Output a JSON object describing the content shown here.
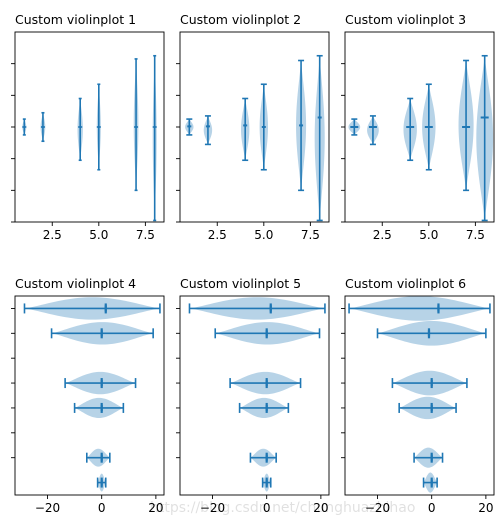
{
  "watermark": "https://blog.csdn.net/chunghuazhihao",
  "colors": {
    "body": "#1f77b4",
    "body_alpha": 0.32,
    "line": "#1f77b4"
  },
  "chart_data": [
    {
      "type": "violin",
      "orientation": "vertical",
      "title": "Custom violinplot 1",
      "positions": [
        1,
        2,
        4,
        5,
        7,
        8
      ],
      "xlim": [
        0.5,
        8.5
      ],
      "ylim": [
        -3,
        3
      ],
      "xticks": [
        2.5,
        5.0,
        7.5
      ],
      "xtick_labels": [
        "2.5",
        "5.0",
        "7.5"
      ],
      "yticks": [
        -3,
        -2,
        -1,
        0,
        1,
        2
      ],
      "ytick_labels": [
        "",
        "",
        "",
        "",
        "",
        ""
      ],
      "showmeans": false,
      "showmedians": false,
      "showextrema": true,
      "violins": [
        {
          "min": -0.25,
          "max": 0.25,
          "median": 0,
          "mean": 0,
          "width": 0.12
        },
        {
          "min": -0.45,
          "max": 0.45,
          "median": 0,
          "mean": 0,
          "width": 0.14
        },
        {
          "min": -1.05,
          "max": 0.9,
          "median": 0,
          "mean": 0,
          "width": 0.16
        },
        {
          "min": -1.35,
          "max": 1.35,
          "median": 0,
          "mean": 0,
          "width": 0.12
        },
        {
          "min": -2.0,
          "max": 2.15,
          "median": 0,
          "mean": 0,
          "width": 0.14
        },
        {
          "min": -2.95,
          "max": 2.25,
          "median": 0,
          "mean": 0,
          "width": 0.12
        }
      ]
    },
    {
      "type": "violin",
      "orientation": "vertical",
      "title": "Custom violinplot 2",
      "positions": [
        1,
        2,
        4,
        5,
        7,
        8
      ],
      "xlim": [
        0.5,
        8.5
      ],
      "ylim": [
        -3,
        3
      ],
      "xticks": [
        2.5,
        5.0,
        7.5
      ],
      "xtick_labels": [
        "2.5",
        "5.0",
        "7.5"
      ],
      "yticks": [
        -3,
        -2,
        -1,
        0,
        1,
        2
      ],
      "ytick_labels": [
        "",
        "",
        "",
        "",
        "",
        ""
      ],
      "showmeans": true,
      "showmedians": false,
      "showextrema": true,
      "violins": [
        {
          "min": -0.25,
          "max": 0.25,
          "median": 0,
          "mean": 0.02,
          "width": 0.25
        },
        {
          "min": -0.55,
          "max": 0.35,
          "median": 0,
          "mean": 0.02,
          "width": 0.25
        },
        {
          "min": -1.05,
          "max": 0.9,
          "median": 0,
          "mean": 0.05,
          "width": 0.25
        },
        {
          "min": -1.35,
          "max": 1.35,
          "median": 0,
          "mean": 0.0,
          "width": 0.25
        },
        {
          "min": -2.0,
          "max": 2.1,
          "median": 0,
          "mean": 0.05,
          "width": 0.3
        },
        {
          "min": -2.95,
          "max": 2.25,
          "median": 0,
          "mean": 0.3,
          "width": 0.3
        }
      ]
    },
    {
      "type": "violin",
      "orientation": "vertical",
      "title": "Custom violinplot 3",
      "positions": [
        1,
        2,
        4,
        5,
        7,
        8
      ],
      "xlim": [
        0.5,
        8.5
      ],
      "ylim": [
        -3,
        3
      ],
      "xticks": [
        2.5,
        5.0,
        7.5
      ],
      "xtick_labels": [
        "2.5",
        "5.0",
        "7.5"
      ],
      "yticks": [
        -3,
        -2,
        -1,
        0,
        1,
        2
      ],
      "ytick_labels": [
        "",
        "",
        "",
        "",
        "",
        ""
      ],
      "showmeans": false,
      "showmedians": true,
      "showextrema": true,
      "violins": [
        {
          "min": -0.25,
          "max": 0.25,
          "median": 0,
          "mean": 0,
          "width": 0.35
        },
        {
          "min": -0.55,
          "max": 0.35,
          "median": 0,
          "mean": 0,
          "width": 0.35
        },
        {
          "min": -1.05,
          "max": 0.9,
          "median": 0,
          "mean": 0,
          "width": 0.4
        },
        {
          "min": -1.35,
          "max": 1.35,
          "median": 0,
          "mean": 0,
          "width": 0.4
        },
        {
          "min": -2.0,
          "max": 2.1,
          "median": 0,
          "mean": 0,
          "width": 0.45
        },
        {
          "min": -2.95,
          "max": 2.25,
          "median": 0.3,
          "mean": 0.3,
          "width": 0.5
        }
      ]
    },
    {
      "type": "violin",
      "orientation": "horizontal",
      "title": "Custom violinplot 4",
      "positions": [
        1,
        2,
        4,
        5,
        7,
        8
      ],
      "xlim": [
        -32,
        23
      ],
      "ylim": [
        0.5,
        8.5
      ],
      "xticks": [
        -20,
        0,
        20
      ],
      "xtick_labels": [
        "−20",
        "0",
        "20"
      ],
      "yticks": [
        2,
        3,
        4,
        5,
        6,
        7,
        8
      ],
      "ytick_labels": [
        "",
        "",
        "",
        "",
        "",
        "",
        ""
      ],
      "showmeans": true,
      "showmedians": true,
      "showextrema": true,
      "violins": [
        {
          "min": -1.5,
          "max": 1.5,
          "median": 0,
          "mean": 0,
          "width": 0.4
        },
        {
          "min": -5.5,
          "max": 3.0,
          "median": 0,
          "mean": 0,
          "width": 0.4
        },
        {
          "min": -10.0,
          "max": 8.0,
          "median": 0,
          "mean": 0,
          "width": 0.45
        },
        {
          "min": -13.5,
          "max": 12.5,
          "median": 0,
          "mean": 0,
          "width": 0.5
        },
        {
          "min": -18.5,
          "max": 19.0,
          "median": 0,
          "mean": 0,
          "width": 0.5
        },
        {
          "min": -28.5,
          "max": 21.5,
          "median": 1.5,
          "mean": 1.5,
          "width": 0.5
        }
      ]
    },
    {
      "type": "violin",
      "orientation": "horizontal",
      "title": "Custom violinplot 5",
      "positions": [
        1,
        2,
        4,
        5,
        7,
        8
      ],
      "xlim": [
        -32,
        23
      ],
      "ylim": [
        0.5,
        8.5
      ],
      "xticks": [
        -20,
        0,
        20
      ],
      "xtick_labels": [
        "−20",
        "0",
        "20"
      ],
      "yticks": [
        2,
        3,
        4,
        5,
        6,
        7,
        8
      ],
      "ytick_labels": [
        "",
        "",
        "",
        "",
        "",
        "",
        ""
      ],
      "showmeans": true,
      "showmedians": true,
      "showextrema": true,
      "violins": [
        {
          "min": -1.5,
          "max": 1.5,
          "median": 0,
          "mean": 0,
          "width": 0.4
        },
        {
          "min": -6.0,
          "max": 3.5,
          "median": 0,
          "mean": 0,
          "width": 0.4
        },
        {
          "min": -10.0,
          "max": 8.0,
          "median": 0,
          "mean": 0,
          "width": 0.45
        },
        {
          "min": -13.5,
          "max": 12.5,
          "median": 0,
          "mean": 0,
          "width": 0.5
        },
        {
          "min": -19.0,
          "max": 19.5,
          "median": 0,
          "mean": 0,
          "width": 0.5
        },
        {
          "min": -28.5,
          "max": 21.5,
          "median": 1.5,
          "mean": 1.5,
          "width": 0.5
        }
      ]
    },
    {
      "type": "violin",
      "orientation": "horizontal",
      "title": "Custom violinplot 6",
      "positions": [
        1,
        2,
        4,
        5,
        7,
        8
      ],
      "xlim": [
        -32,
        23
      ],
      "ylim": [
        0.5,
        8.5
      ],
      "xticks": [
        -20,
        0,
        20
      ],
      "xtick_labels": [
        "−20",
        "0",
        "20"
      ],
      "yticks": [
        2,
        3,
        4,
        5,
        6,
        7,
        8
      ],
      "ytick_labels": [
        "",
        "",
        "",
        "",
        "",
        "",
        ""
      ],
      "showmeans": true,
      "showmedians": true,
      "showextrema": true,
      "violins": [
        {
          "min": -3.0,
          "max": 2.0,
          "median": 0,
          "mean": 0,
          "width": 0.45
        },
        {
          "min": -6.5,
          "max": 4.0,
          "median": 0,
          "mean": 0,
          "width": 0.45
        },
        {
          "min": -12.0,
          "max": 9.0,
          "median": 0,
          "mean": 0,
          "width": 0.5
        },
        {
          "min": -14.5,
          "max": 13.0,
          "median": 0,
          "mean": 0,
          "width": 0.55
        },
        {
          "min": -20.0,
          "max": 20.0,
          "median": -1.0,
          "mean": -1.0,
          "width": 0.55
        },
        {
          "min": -30.5,
          "max": 21.5,
          "median": 2.5,
          "mean": 2.5,
          "width": 0.55
        }
      ]
    }
  ]
}
